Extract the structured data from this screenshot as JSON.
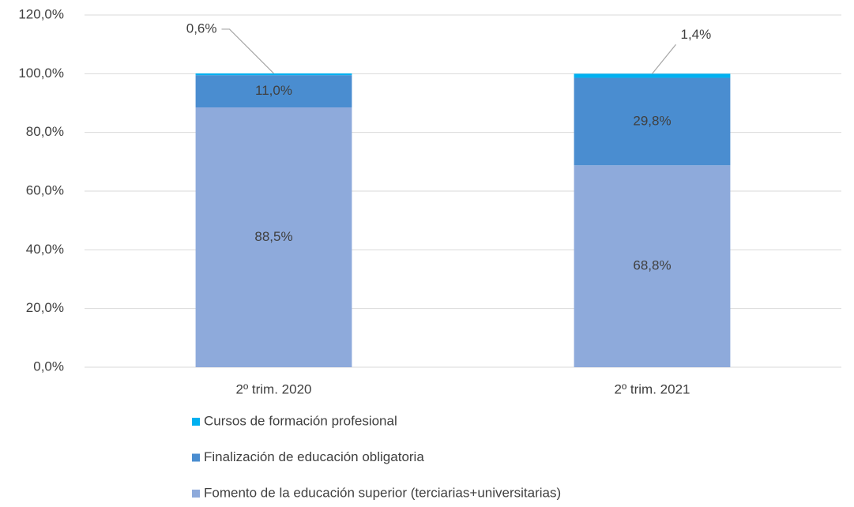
{
  "chart_data": {
    "type": "stacked_bar",
    "categories": [
      "2º trim. 2020",
      "2º trim. 2021"
    ],
    "series": [
      {
        "name": "Fomento de la educación superior (terciarias+universitarias)",
        "color": "#8eaadb",
        "values": [
          88.5,
          68.8
        ],
        "value_labels": [
          "88,5%",
          "68,8%"
        ]
      },
      {
        "name": "Finalización de educación obligatoria",
        "color": "#4a8dd0",
        "values": [
          11.0,
          29.8
        ],
        "value_labels": [
          "11,0%",
          "29,8%"
        ]
      },
      {
        "name": "Cursos de formación profesional",
        "color": "#00b0f0",
        "values": [
          0.6,
          1.4
        ],
        "value_labels": [
          "0,6%",
          "1,4%"
        ]
      }
    ],
    "ylim": [
      0,
      120
    ],
    "yticks": [
      {
        "value": 0,
        "label": "0,0%"
      },
      {
        "value": 20,
        "label": "20,0%"
      },
      {
        "value": 40,
        "label": "40,0%"
      },
      {
        "value": 60,
        "label": "60,0%"
      },
      {
        "value": 80,
        "label": "80,0%"
      },
      {
        "value": 100,
        "label": "100,0%"
      },
      {
        "value": 120,
        "label": "120,0%"
      }
    ],
    "grid": true,
    "legend": "bottom"
  }
}
